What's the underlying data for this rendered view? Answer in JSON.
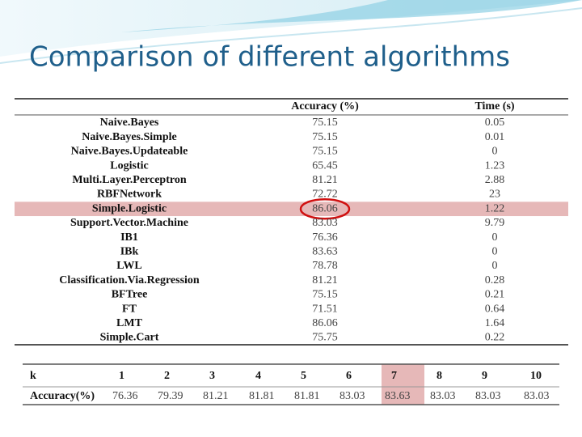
{
  "header": {
    "title": "Comparison of different algorithms"
  },
  "table": {
    "columns": [
      "Accuracy (%)",
      "Time (s)"
    ],
    "rows": [
      [
        "Naive.Bayes",
        "75.15",
        "0.05"
      ],
      [
        "Naive.Bayes.Simple",
        "75.15",
        "0.01"
      ],
      [
        "Naive.Bayes.Updateable",
        "75.15",
        "0"
      ],
      [
        "Logistic",
        "65.45",
        "1.23"
      ],
      [
        "Multi.Layer.Perceptron",
        "81.21",
        "2.88"
      ],
      [
        "RBFNetwork",
        "72.72",
        "23"
      ],
      [
        "Simple.Logistic",
        "86.06",
        "1.22"
      ],
      [
        "Support.Vector.Machine",
        "83.03",
        "9.79"
      ],
      [
        "IB1",
        "76.36",
        "0"
      ],
      [
        "IBk",
        "83.63",
        "0"
      ],
      [
        "LWL",
        "78.78",
        "0"
      ],
      [
        "Classification.Via.Regression",
        "81.21",
        "0.28"
      ],
      [
        "BFTree",
        "75.15",
        "0.21"
      ],
      [
        "FT",
        "71.51",
        "0.64"
      ],
      [
        "LMT",
        "86.06",
        "1.64"
      ],
      [
        "Simple.Cart",
        "75.75",
        "0.22"
      ]
    ]
  },
  "table2": {
    "rows": [
      [
        "k",
        "1",
        "2",
        "3",
        "4",
        "5",
        "6",
        "7",
        "8",
        "9",
        "10"
      ],
      [
        "Accuracy(%)",
        "76.36",
        "79.39",
        "81.21",
        "81.81",
        "81.81",
        "83.03",
        "83.63",
        "83.03",
        "83.03",
        "83.03"
      ]
    ]
  }
}
